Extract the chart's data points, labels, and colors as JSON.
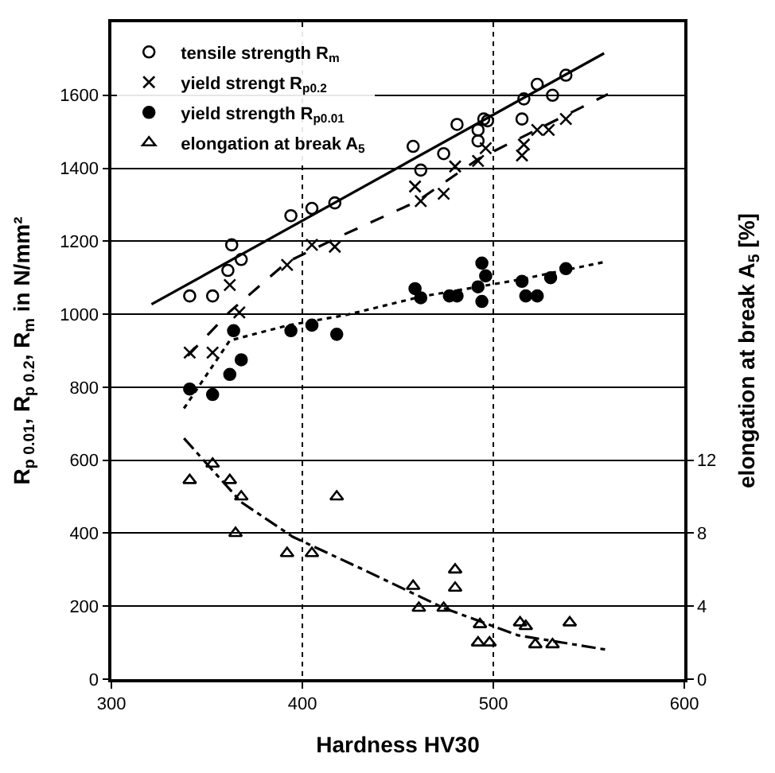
{
  "chart_data": {
    "type": "scatter",
    "xlabel": "Hardness HV30",
    "ylabel": "R$_{p 0.01}$, R$_{p 0.2}$, R$_{m}$ in N/mm²",
    "y2label": "elongation at break A$_{5}$ [%]",
    "xlim": [
      300,
      600
    ],
    "xticks": [
      300,
      400,
      500,
      600
    ],
    "ylim": [
      0,
      1800
    ],
    "yticks": [
      0,
      200,
      400,
      600,
      800,
      1000,
      1200,
      1400,
      1600
    ],
    "y2lim": [
      0,
      36
    ],
    "y2ticks": [
      0,
      4,
      8,
      12
    ],
    "grid": true,
    "legend": "top left",
    "series": [
      {
        "name": "tensile strength R$_{m}$",
        "marker": "circle-open",
        "color": "#000000",
        "x": [
          341,
          353,
          361,
          363,
          368,
          394,
          405,
          417,
          458,
          462,
          474,
          481,
          492,
          492,
          495,
          497,
          515,
          516,
          523,
          531,
          538
        ],
        "values": [
          1050,
          1050,
          1120,
          1190,
          1150,
          1270,
          1290,
          1305,
          1460,
          1395,
          1440,
          1520,
          1475,
          1505,
          1535,
          1530,
          1535,
          1590,
          1630,
          1600,
          1655
        ]
      },
      {
        "name": "yield strengt R$_{p0.2}$",
        "marker": "cross",
        "color": "#000000",
        "x": [
          341,
          353,
          362,
          367,
          392,
          405,
          417,
          459,
          462,
          474,
          480,
          492,
          496,
          515,
          516,
          523,
          529,
          538
        ],
        "values": [
          895,
          895,
          1080,
          1005,
          1135,
          1190,
          1185,
          1350,
          1310,
          1330,
          1405,
          1420,
          1455,
          1435,
          1465,
          1505,
          1505,
          1535
        ]
      },
      {
        "name": "yield strength R$_{p0.01}$",
        "marker": "circle",
        "color": "#000000",
        "x": [
          341,
          353,
          362,
          364,
          368,
          394,
          405,
          418,
          459,
          462,
          477,
          481,
          492,
          494,
          494,
          496,
          515,
          517,
          523,
          530,
          538
        ],
        "values": [
          795,
          780,
          835,
          955,
          875,
          955,
          970,
          945,
          1070,
          1045,
          1050,
          1050,
          1075,
          1035,
          1140,
          1105,
          1090,
          1050,
          1050,
          1100,
          1125
        ]
      },
      {
        "name": "elongation at break A$_{5}$",
        "axis": "y2",
        "marker": "triangle-open",
        "color": "#000000",
        "x": [
          341,
          353,
          362,
          365,
          368,
          392,
          405,
          418,
          458,
          461,
          474,
          480,
          480,
          492,
          493,
          498,
          514,
          517,
          522,
          531,
          540
        ],
        "values": [
          10.9,
          11.8,
          10.9,
          8.0,
          10.0,
          6.9,
          6.9,
          10.0,
          5.1,
          3.9,
          3.9,
          6.0,
          5.0,
          2.0,
          3.0,
          2.0,
          3.1,
          2.9,
          1.9,
          1.9,
          3.1
        ]
      },
      {
        "type": "line",
        "line_style": "solid",
        "color": "#000000",
        "x": [
          321,
          558
        ],
        "values": [
          1027,
          1715
        ]
      },
      {
        "type": "line",
        "line_style": "dashed",
        "color": "#000000",
        "x": [
          340,
          362,
          392,
          420,
          460,
          492,
          560
        ],
        "values": [
          886,
          1007,
          1143,
          1214,
          1309,
          1425,
          1603
        ]
      },
      {
        "type": "line",
        "line_style": "dotted",
        "color": "#000000",
        "x": [
          338,
          362,
          392,
          423,
          462,
          513,
          558
        ],
        "values": [
          742,
          928,
          969,
          998,
          1048,
          1094,
          1143
        ]
      },
      {
        "type": "line",
        "line_style": "dashdot",
        "axis": "y2",
        "color": "#000000",
        "x": [
          338,
          368,
          395,
          432,
          474,
          513,
          560
        ],
        "values": [
          13.2,
          9.7,
          7.8,
          6.0,
          3.9,
          2.4,
          1.6
        ]
      }
    ]
  }
}
